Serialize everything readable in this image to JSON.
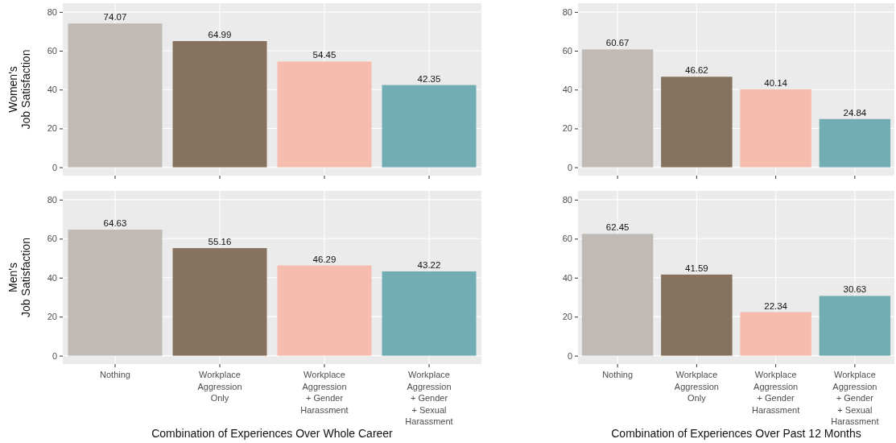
{
  "chart_data": [
    {
      "type": "bar",
      "ylabel": "Women's\nJob Satisfaction",
      "categories": [
        null,
        null,
        null,
        null
      ],
      "values": [
        74.07,
        64.99,
        54.45,
        42.35
      ],
      "colors": [
        "#c0bab5",
        "#86725e",
        "#f6bcad",
        "#71adb3"
      ],
      "ylim": [
        -4.3,
        84.5
      ],
      "yticks": [
        0,
        20,
        40,
        60,
        80
      ],
      "grid": true,
      "data_labels": true,
      "tick_labels": "y"
    },
    {
      "type": "bar",
      "categories": [
        null,
        null,
        null,
        null
      ],
      "values": [
        60.67,
        46.62,
        40.14,
        24.84
      ],
      "colors": [
        "#c0bab5",
        "#86725e",
        "#f6bcad",
        "#71adb3"
      ],
      "ylim": [
        -4.3,
        84.5
      ],
      "yticks": [
        0,
        20,
        40,
        60,
        80
      ],
      "grid": true,
      "data_labels": true,
      "tick_labels": "y"
    },
    {
      "type": "bar",
      "xlabel": "Combination of Experiences Over Whole Career",
      "ylabel": "Men's\nJob Satisfaction",
      "categories": [
        "Nothing",
        "Workplace\nAggression\nOnly",
        "Workplace\nAggression\n+ Gender\nHarassment",
        "Workplace\nAggression\n+ Gender\n+ Sexual\nHarassment"
      ],
      "values": [
        64.63,
        55.16,
        46.29,
        43.22
      ],
      "colors": [
        "#c0bab5",
        "#86725e",
        "#f6bcad",
        "#71adb3"
      ],
      "ylim": [
        -4.3,
        84.5
      ],
      "yticks": [
        0,
        20,
        40,
        60,
        80
      ],
      "grid": true,
      "data_labels": true
    },
    {
      "type": "bar",
      "xlabel": "Combination of Experiences Over Past 12 Months",
      "categories": [
        "Nothing",
        "Workplace\nAggression\nOnly",
        "Workplace\nAggression\n+ Gender\nHarassment",
        "Workplace\nAggression\n+ Gender\n+ Sexual\nHarassment"
      ],
      "values": [
        62.45,
        41.59,
        22.34,
        30.63
      ],
      "colors": [
        "#c0bab5",
        "#86725e",
        "#f6bcad",
        "#71adb3"
      ],
      "ylim": [
        -4.3,
        84.5
      ],
      "yticks": [
        0,
        20,
        40,
        60,
        80
      ],
      "grid": true,
      "data_labels": true
    }
  ]
}
